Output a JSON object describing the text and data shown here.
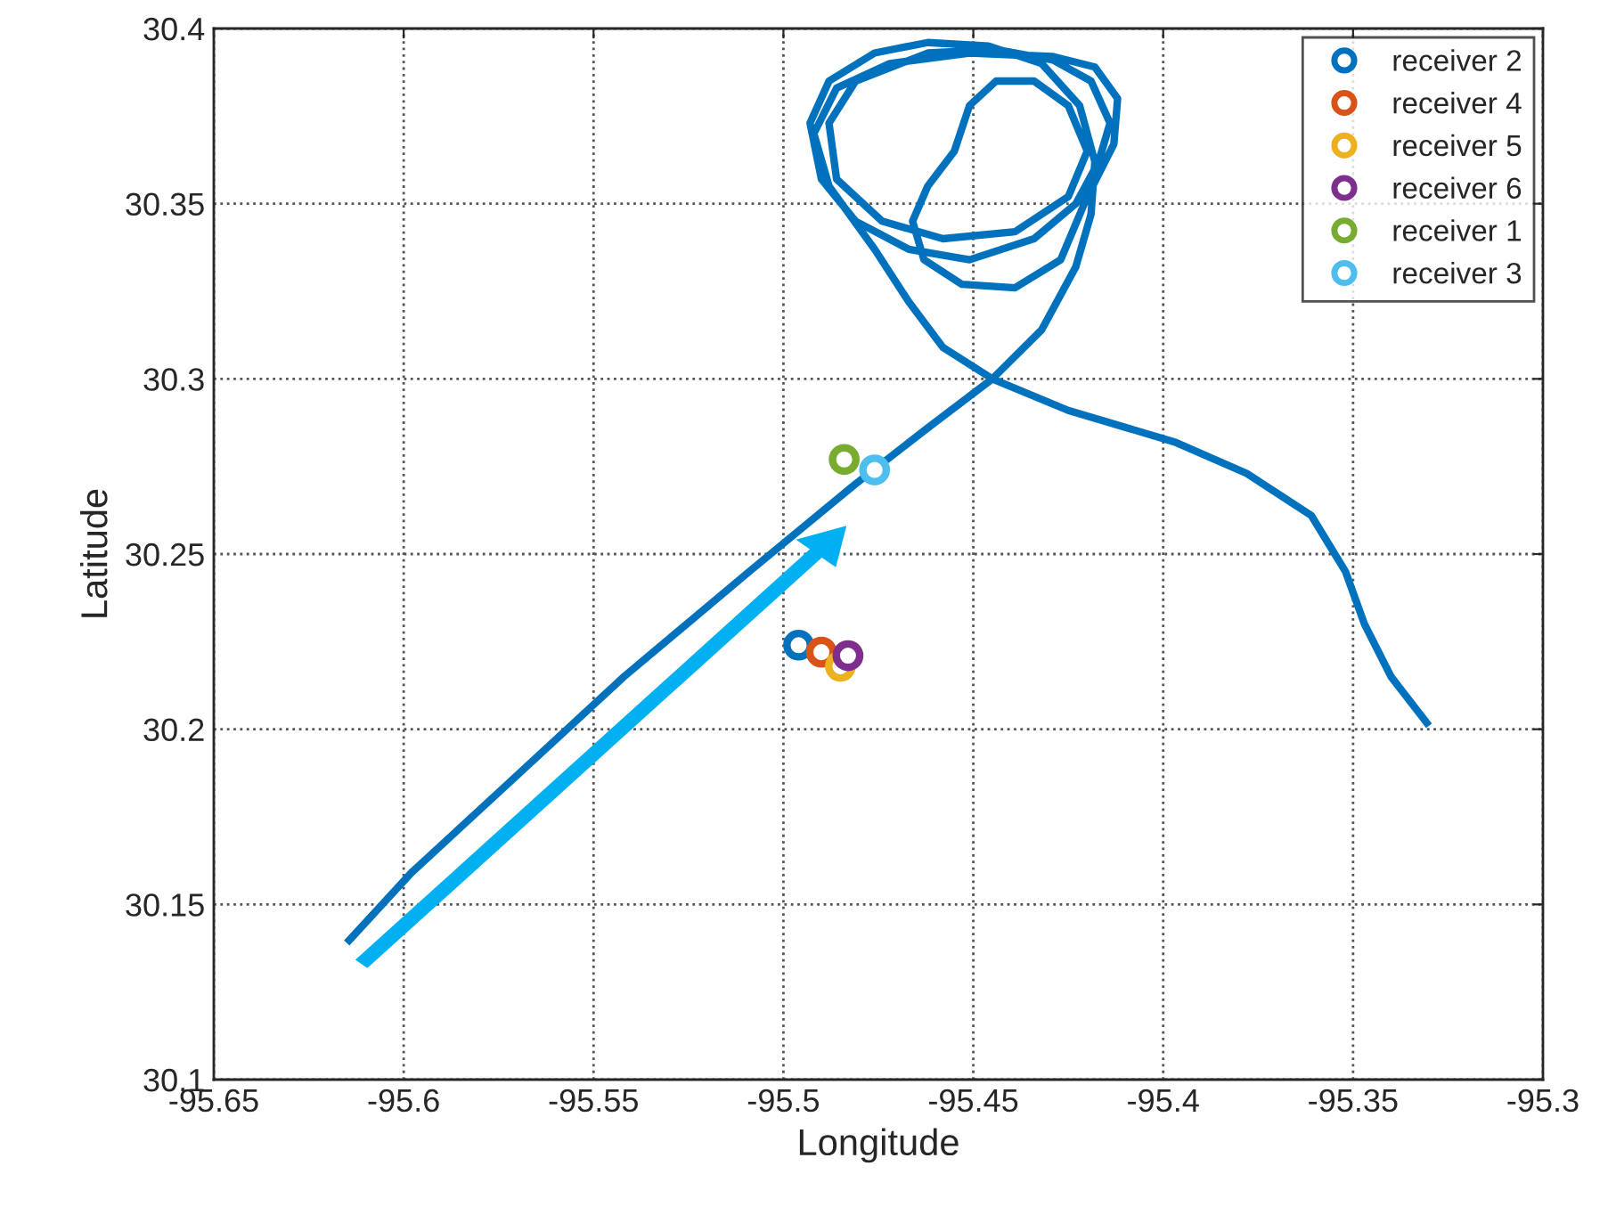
{
  "chart_data": {
    "type": "line",
    "xlabel": "Longitude",
    "ylabel": "Latitude",
    "xlim": [
      -95.65,
      -95.3
    ],
    "ylim": [
      30.1,
      30.4
    ],
    "xticks": [
      -95.65,
      -95.6,
      -95.55,
      -95.5,
      -95.45,
      -95.4,
      -95.35,
      -95.3
    ],
    "yticks": [
      30.1,
      30.15,
      30.2,
      30.25,
      30.3,
      30.35,
      30.4
    ],
    "grid": true,
    "legend": "top right",
    "marker": "circle",
    "series": [
      {
        "color": "#0072bd",
        "marker": "none",
        "x": [
          -95.615,
          -95.598,
          -95.575,
          -95.542,
          -95.509,
          -95.481,
          -95.462,
          -95.445,
          -95.432,
          -95.423,
          -95.419,
          -95.418,
          -95.422,
          -95.432,
          -95.446,
          -95.462,
          -95.476,
          -95.488,
          -95.493,
          -95.49,
          -95.481,
          -95.467,
          -95.451,
          -95.434,
          -95.423,
          -95.417,
          -95.414,
          -95.419,
          -95.429,
          -95.444,
          -95.462,
          -95.481,
          -95.488,
          -95.486,
          -95.474,
          -95.458,
          -95.439,
          -95.425,
          -95.42,
          -95.425,
          -95.434,
          -95.444,
          -95.451,
          -95.455,
          -95.462,
          -95.466,
          -95.463,
          -95.453,
          -95.439,
          -95.427,
          -95.42,
          -95.413,
          -95.412,
          -95.418,
          -95.429,
          -95.451,
          -95.472,
          -95.486,
          -95.492,
          -95.488,
          -95.476,
          -95.467,
          -95.458,
          -95.445,
          -95.425,
          -95.397,
          -95.378,
          -95.361,
          -95.352,
          -95.347,
          -95.34,
          -95.33
        ],
        "values": [
          30.139,
          30.159,
          30.182,
          30.215,
          30.245,
          30.27,
          30.286,
          30.3,
          30.314,
          30.332,
          30.347,
          30.362,
          30.378,
          30.39,
          30.395,
          30.396,
          30.393,
          30.385,
          30.373,
          30.357,
          30.345,
          30.337,
          30.334,
          30.34,
          30.35,
          30.362,
          30.373,
          30.385,
          30.391,
          30.394,
          30.393,
          30.385,
          30.373,
          30.357,
          30.345,
          30.34,
          30.342,
          30.352,
          30.365,
          30.378,
          30.385,
          30.385,
          30.378,
          30.365,
          30.355,
          30.345,
          30.334,
          30.327,
          30.326,
          30.334,
          30.352,
          30.367,
          30.38,
          30.389,
          30.392,
          30.393,
          30.39,
          30.383,
          30.37,
          30.355,
          30.337,
          30.322,
          30.309,
          30.3,
          30.291,
          30.282,
          30.273,
          30.261,
          30.245,
          30.23,
          30.215,
          30.201
        ]
      },
      {
        "type": "scatter",
        "name": "receiver 2",
        "color": "#0072bd",
        "x": [
          -95.496
        ],
        "values": [
          30.224
        ]
      },
      {
        "type": "scatter",
        "name": "receiver 4",
        "color": "#d95319",
        "x": [
          -95.49
        ],
        "values": [
          30.222
        ]
      },
      {
        "type": "scatter",
        "name": "receiver 5",
        "color": "#edb120",
        "x": [
          -95.485
        ],
        "values": [
          30.218
        ]
      },
      {
        "type": "scatter",
        "name": "receiver 6",
        "color": "#7e2f8e",
        "x": [
          -95.483
        ],
        "values": [
          30.221
        ]
      },
      {
        "type": "scatter",
        "name": "receiver 1",
        "color": "#77ac30",
        "x": [
          -95.484
        ],
        "values": [
          30.277
        ]
      },
      {
        "type": "scatter",
        "name": "receiver 3",
        "color": "#4dbeee",
        "x": [
          -95.476
        ],
        "values": [
          30.274
        ]
      }
    ]
  }
}
